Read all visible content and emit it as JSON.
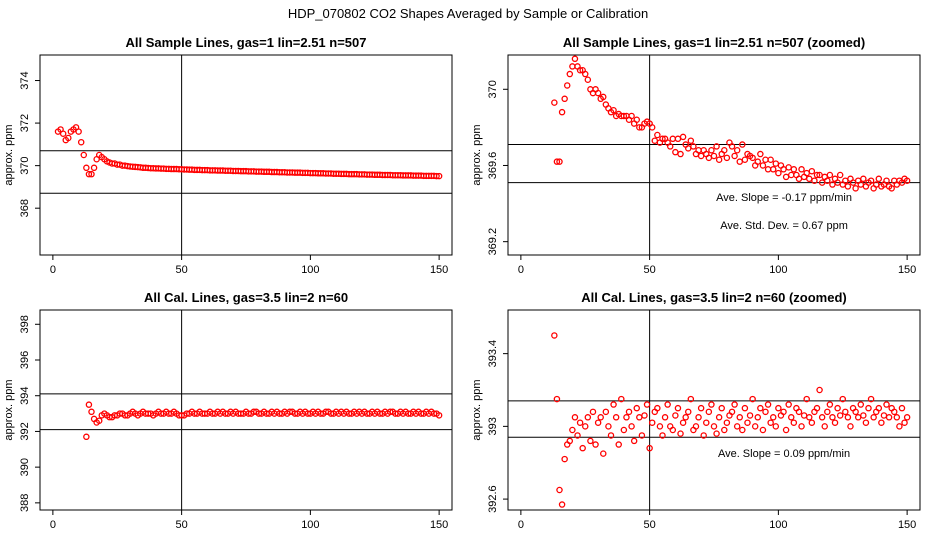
{
  "figure_title": "HDP_070802  CO2 Shapes Averaged by Sample or Calibration",
  "colors": {
    "points": "#ff0000",
    "lines": "#000000"
  },
  "chart_data": [
    {
      "type": "scatter",
      "title": "All Sample Lines, gas=1 lin=2.51 n=507",
      "ylabel": "approx. ppm",
      "xlim": [
        -5,
        155
      ],
      "ylim": [
        365.8,
        375.2
      ],
      "xticks": [
        0,
        50,
        100,
        150
      ],
      "yticks": [
        368,
        370,
        372,
        374
      ],
      "vline": 50,
      "hlines": [
        370.7,
        368.7
      ],
      "annotations": [],
      "x": [
        2,
        3,
        4,
        5,
        6,
        7,
        8,
        9,
        10,
        11,
        12,
        13,
        14,
        15,
        16,
        17,
        18,
        19,
        20,
        21,
        22,
        23,
        24,
        25,
        26,
        27,
        28,
        29,
        30,
        31,
        32,
        33,
        34,
        35,
        36,
        37,
        38,
        39,
        40,
        41,
        42,
        43,
        44,
        45,
        46,
        47,
        48,
        49,
        50,
        51,
        52,
        53,
        54,
        55,
        56,
        57,
        58,
        59,
        60,
        61,
        62,
        63,
        64,
        65,
        66,
        67,
        68,
        69,
        70,
        71,
        72,
        73,
        74,
        75,
        76,
        77,
        78,
        79,
        80,
        81,
        82,
        83,
        84,
        85,
        86,
        87,
        88,
        89,
        90,
        91,
        92,
        93,
        94,
        95,
        96,
        97,
        98,
        99,
        100,
        101,
        102,
        103,
        104,
        105,
        106,
        107,
        108,
        109,
        110,
        111,
        112,
        113,
        114,
        115,
        116,
        117,
        118,
        119,
        120,
        121,
        122,
        123,
        124,
        125,
        126,
        127,
        128,
        129,
        130,
        131,
        132,
        133,
        134,
        135,
        136,
        137,
        138,
        139,
        140,
        141,
        142,
        143,
        144,
        145,
        146,
        147,
        148,
        149,
        150
      ],
      "y": [
        371.6,
        371.7,
        371.5,
        371.2,
        371.3,
        371.6,
        371.7,
        371.8,
        371.6,
        371.1,
        370.5,
        369.9,
        369.6,
        369.6,
        369.9,
        370.3,
        370.5,
        370.4,
        370.3,
        370.2,
        370.15,
        370.1,
        370.1,
        370.05,
        370.05,
        370.0,
        370.0,
        369.98,
        369.96,
        369.95,
        369.94,
        369.93,
        369.92,
        369.9,
        369.9,
        369.89,
        369.88,
        369.88,
        369.87,
        369.87,
        369.86,
        369.86,
        369.85,
        369.85,
        369.84,
        369.84,
        369.84,
        369.83,
        369.83,
        369.82,
        369.82,
        369.81,
        369.81,
        369.8,
        369.8,
        369.8,
        369.79,
        369.79,
        369.79,
        369.78,
        369.78,
        369.78,
        369.77,
        369.77,
        369.77,
        369.76,
        369.76,
        369.76,
        369.75,
        369.75,
        369.75,
        369.74,
        369.74,
        369.74,
        369.73,
        369.73,
        369.73,
        369.72,
        369.72,
        369.72,
        369.71,
        369.71,
        369.71,
        369.7,
        369.7,
        369.7,
        369.69,
        369.69,
        369.69,
        369.68,
        369.68,
        369.68,
        369.67,
        369.67,
        369.67,
        369.66,
        369.66,
        369.66,
        369.65,
        369.65,
        369.65,
        369.64,
        369.64,
        369.64,
        369.63,
        369.63,
        369.63,
        369.62,
        369.62,
        369.62,
        369.61,
        369.61,
        369.61,
        369.6,
        369.6,
        369.6,
        369.6,
        369.59,
        369.59,
        369.59,
        369.58,
        369.58,
        369.58,
        369.57,
        369.57,
        369.57,
        369.56,
        369.56,
        369.56,
        369.56,
        369.55,
        369.55,
        369.55,
        369.55,
        369.54,
        369.54,
        369.54,
        369.54,
        369.53,
        369.53,
        369.53,
        369.53,
        369.52,
        369.52,
        369.52,
        369.52,
        369.52,
        369.51,
        369.51
      ]
    },
    {
      "type": "scatter",
      "title": "All Sample Lines, gas=1 lin=2.51 n=507 (zoomed)",
      "ylabel": "approx. ppm",
      "xlim": [
        -5,
        155
      ],
      "ylim": [
        369.13,
        370.18
      ],
      "xticks": [
        0,
        50,
        100,
        150
      ],
      "yticks": [
        369.2,
        369.6,
        370.0
      ],
      "vline": 50,
      "hlines": [
        369.71,
        369.51
      ],
      "annotations": [
        "Ave. Slope = -0.17  ppm/min",
        "Ave. Std. Dev. =  0.67  ppm"
      ],
      "x": [
        13,
        14,
        15,
        16,
        17,
        18,
        19,
        20,
        21,
        22,
        23,
        24,
        25,
        26,
        27,
        28,
        29,
        30,
        31,
        32,
        33,
        34,
        35,
        36,
        37,
        38,
        39,
        40,
        41,
        42,
        43,
        44,
        45,
        46,
        47,
        48,
        49,
        50,
        51,
        52,
        53,
        54,
        55,
        56,
        57,
        58,
        59,
        60,
        61,
        62,
        63,
        64,
        65,
        66,
        67,
        68,
        69,
        70,
        71,
        72,
        73,
        74,
        75,
        76,
        77,
        78,
        79,
        80,
        81,
        82,
        83,
        84,
        85,
        86,
        87,
        88,
        89,
        90,
        91,
        92,
        93,
        94,
        95,
        96,
        97,
        98,
        99,
        100,
        101,
        102,
        103,
        104,
        105,
        106,
        107,
        108,
        109,
        110,
        111,
        112,
        113,
        114,
        115,
        116,
        117,
        118,
        119,
        120,
        121,
        122,
        123,
        124,
        125,
        126,
        127,
        128,
        129,
        130,
        131,
        132,
        133,
        134,
        135,
        136,
        137,
        138,
        139,
        140,
        141,
        142,
        143,
        144,
        145,
        146,
        147,
        148,
        149,
        150
      ],
      "y": [
        369.93,
        369.62,
        369.62,
        369.88,
        369.95,
        370.02,
        370.08,
        370.12,
        370.16,
        370.12,
        370.1,
        370.1,
        370.08,
        370.05,
        370.0,
        369.98,
        370.0,
        369.98,
        369.95,
        369.96,
        369.92,
        369.9,
        369.88,
        369.89,
        369.86,
        369.87,
        369.86,
        369.86,
        369.86,
        369.84,
        369.86,
        369.82,
        369.84,
        369.8,
        369.8,
        369.82,
        369.83,
        369.82,
        369.8,
        369.73,
        369.76,
        369.72,
        369.74,
        369.74,
        369.72,
        369.7,
        369.74,
        369.67,
        369.74,
        369.66,
        369.75,
        369.71,
        369.69,
        369.73,
        369.7,
        369.66,
        369.68,
        369.65,
        369.68,
        369.66,
        369.64,
        369.68,
        369.65,
        369.7,
        369.63,
        369.66,
        369.68,
        369.64,
        369.72,
        369.7,
        369.65,
        369.68,
        369.62,
        369.71,
        369.63,
        369.66,
        369.65,
        369.64,
        369.6,
        369.62,
        369.66,
        369.6,
        369.63,
        369.58,
        369.63,
        369.58,
        369.61,
        369.56,
        369.6,
        369.58,
        369.54,
        369.59,
        369.55,
        369.58,
        369.55,
        369.53,
        369.58,
        369.54,
        369.56,
        369.53,
        369.57,
        369.52,
        369.55,
        369.55,
        369.51,
        369.54,
        369.52,
        369.55,
        369.5,
        369.53,
        369.51,
        369.55,
        369.5,
        369.52,
        369.49,
        369.53,
        369.51,
        369.48,
        369.52,
        369.5,
        369.53,
        369.49,
        369.51,
        369.52,
        369.48,
        369.5,
        369.53,
        369.49,
        369.5,
        369.52,
        369.49,
        369.48,
        369.52,
        369.5,
        369.52,
        369.51,
        369.53,
        369.52
      ]
    },
    {
      "type": "scatter",
      "title": "All Cal. Lines, gas=3.5 lin=2 n=60",
      "ylabel": "approx. ppm",
      "xlim": [
        -5,
        155
      ],
      "ylim": [
        387.6,
        398.8
      ],
      "xticks": [
        0,
        50,
        100,
        150
      ],
      "yticks": [
        388,
        390,
        392,
        394,
        396,
        398
      ],
      "vline": 50,
      "hlines": [
        394.1,
        392.1
      ],
      "annotations": [],
      "x": [
        13,
        14,
        15,
        16,
        17,
        18,
        19,
        20,
        21,
        22,
        23,
        24,
        25,
        26,
        27,
        28,
        29,
        30,
        31,
        32,
        33,
        34,
        35,
        36,
        37,
        38,
        39,
        40,
        41,
        42,
        43,
        44,
        45,
        46,
        47,
        48,
        49,
        50,
        51,
        52,
        53,
        54,
        55,
        56,
        57,
        58,
        59,
        60,
        61,
        62,
        63,
        64,
        65,
        66,
        67,
        68,
        69,
        70,
        71,
        72,
        73,
        74,
        75,
        76,
        77,
        78,
        79,
        80,
        81,
        82,
        83,
        84,
        85,
        86,
        87,
        88,
        89,
        90,
        91,
        92,
        93,
        94,
        95,
        96,
        97,
        98,
        99,
        100,
        101,
        102,
        103,
        104,
        105,
        106,
        107,
        108,
        109,
        110,
        111,
        112,
        113,
        114,
        115,
        116,
        117,
        118,
        119,
        120,
        121,
        122,
        123,
        124,
        125,
        126,
        127,
        128,
        129,
        130,
        131,
        132,
        133,
        134,
        135,
        136,
        137,
        138,
        139,
        140,
        141,
        142,
        143,
        144,
        145,
        146,
        147,
        148,
        149,
        150
      ],
      "y": [
        391.7,
        393.5,
        393.1,
        392.7,
        392.5,
        392.6,
        392.9,
        393.0,
        392.9,
        392.8,
        392.8,
        392.9,
        392.9,
        393.0,
        393.0,
        392.9,
        392.9,
        393.0,
        393.1,
        393.0,
        392.9,
        393.0,
        393.1,
        393.0,
        393.0,
        393.0,
        392.9,
        393.0,
        393.1,
        393.0,
        393.0,
        393.1,
        393.0,
        393.0,
        393.1,
        393.0,
        392.9,
        392.9,
        392.9,
        393.0,
        393.0,
        393.1,
        393.0,
        393.0,
        393.1,
        393.0,
        393.0,
        393.0,
        393.1,
        393.0,
        393.0,
        393.1,
        393.0,
        393.1,
        393.0,
        393.0,
        393.1,
        393.0,
        393.1,
        393.0,
        393.0,
        393.0,
        393.1,
        393.0,
        393.0,
        393.1,
        393.1,
        393.0,
        393.0,
        393.1,
        393.0,
        393.0,
        393.1,
        393.0,
        393.1,
        393.0,
        393.0,
        393.1,
        393.0,
        393.1,
        393.1,
        393.0,
        393.0,
        393.1,
        393.0,
        393.1,
        393.0,
        393.0,
        393.1,
        393.0,
        393.1,
        393.0,
        393.0,
        393.1,
        393.1,
        393.0,
        393.0,
        393.1,
        393.0,
        393.1,
        393.0,
        393.1,
        393.0,
        393.0,
        393.1,
        393.0,
        393.1,
        393.0,
        393.1,
        393.0,
        393.0,
        393.1,
        393.0,
        393.1,
        393.0,
        393.0,
        393.1,
        393.0,
        393.1,
        393.1,
        393.0,
        393.0,
        393.1,
        393.0,
        393.1,
        393.0,
        393.0,
        393.1,
        393.0,
        393.1,
        393.0,
        393.0,
        393.1,
        393.0,
        393.1,
        393.0,
        393.0,
        392.9
      ]
    },
    {
      "type": "scatter",
      "title": "All Cal. Lines, gas=3.5 lin=2 n=60 (zoomed)",
      "ylabel": "approx. ppm",
      "xlim": [
        -5,
        155
      ],
      "ylim": [
        392.54,
        393.64
      ],
      "xticks": [
        0,
        50,
        100,
        150
      ],
      "yticks": [
        392.6,
        393.0,
        393.4
      ],
      "vline": 50,
      "hlines": [
        393.14,
        392.94
      ],
      "annotations": [
        "Ave. Slope =  0.09  ppm/min"
      ],
      "x": [
        13,
        14,
        15,
        16,
        17,
        18,
        19,
        20,
        21,
        22,
        23,
        24,
        25,
        26,
        27,
        28,
        29,
        30,
        31,
        32,
        33,
        34,
        35,
        36,
        37,
        38,
        39,
        40,
        41,
        42,
        43,
        44,
        45,
        46,
        47,
        48,
        49,
        50,
        51,
        52,
        53,
        54,
        55,
        56,
        57,
        58,
        59,
        60,
        61,
        62,
        63,
        64,
        65,
        66,
        67,
        68,
        69,
        70,
        71,
        72,
        73,
        74,
        75,
        76,
        77,
        78,
        79,
        80,
        81,
        82,
        83,
        84,
        85,
        86,
        87,
        88,
        89,
        90,
        91,
        92,
        93,
        94,
        95,
        96,
        97,
        98,
        99,
        100,
        101,
        102,
        103,
        104,
        105,
        106,
        107,
        108,
        109,
        110,
        111,
        112,
        113,
        114,
        115,
        116,
        117,
        118,
        119,
        120,
        121,
        122,
        123,
        124,
        125,
        126,
        127,
        128,
        129,
        130,
        131,
        132,
        133,
        134,
        135,
        136,
        137,
        138,
        139,
        140,
        141,
        142,
        143,
        144,
        145,
        146,
        147,
        148,
        149,
        150
      ],
      "y": [
        393.5,
        393.15,
        392.65,
        392.57,
        392.82,
        392.9,
        392.92,
        392.98,
        393.05,
        392.95,
        393.02,
        392.88,
        393.0,
        393.05,
        392.92,
        393.08,
        392.9,
        393.02,
        393.05,
        392.85,
        393.08,
        393.0,
        392.95,
        393.12,
        393.05,
        392.9,
        393.15,
        392.98,
        393.05,
        393.08,
        393.0,
        392.92,
        393.1,
        393.05,
        392.95,
        393.06,
        393.12,
        392.88,
        393.02,
        393.08,
        393.1,
        393.0,
        392.95,
        393.05,
        393.12,
        393.0,
        392.98,
        393.06,
        393.1,
        392.96,
        393.02,
        393.05,
        393.08,
        393.15,
        392.98,
        393.0,
        393.05,
        393.1,
        392.95,
        393.02,
        393.08,
        393.12,
        393.0,
        392.96,
        393.05,
        393.1,
        392.98,
        393.02,
        393.06,
        393.08,
        393.12,
        393.0,
        393.05,
        392.98,
        393.1,
        393.02,
        393.06,
        393.15,
        393.0,
        393.05,
        393.1,
        392.98,
        393.08,
        393.12,
        393.02,
        393.05,
        393.0,
        393.1,
        393.06,
        393.08,
        392.98,
        393.12,
        393.05,
        393.02,
        393.1,
        393.08,
        393.0,
        393.06,
        393.15,
        393.05,
        393.02,
        393.08,
        393.1,
        393.2,
        393.05,
        393.0,
        393.08,
        393.12,
        393.05,
        393.02,
        393.1,
        393.06,
        393.15,
        393.08,
        393.05,
        393.0,
        393.1,
        393.08,
        393.05,
        393.12,
        393.06,
        393.02,
        393.1,
        393.15,
        393.05,
        393.08,
        393.1,
        393.02,
        393.06,
        393.12,
        393.05,
        393.1,
        393.08,
        393.05,
        393.0,
        393.1,
        393.02,
        393.05
      ]
    }
  ]
}
